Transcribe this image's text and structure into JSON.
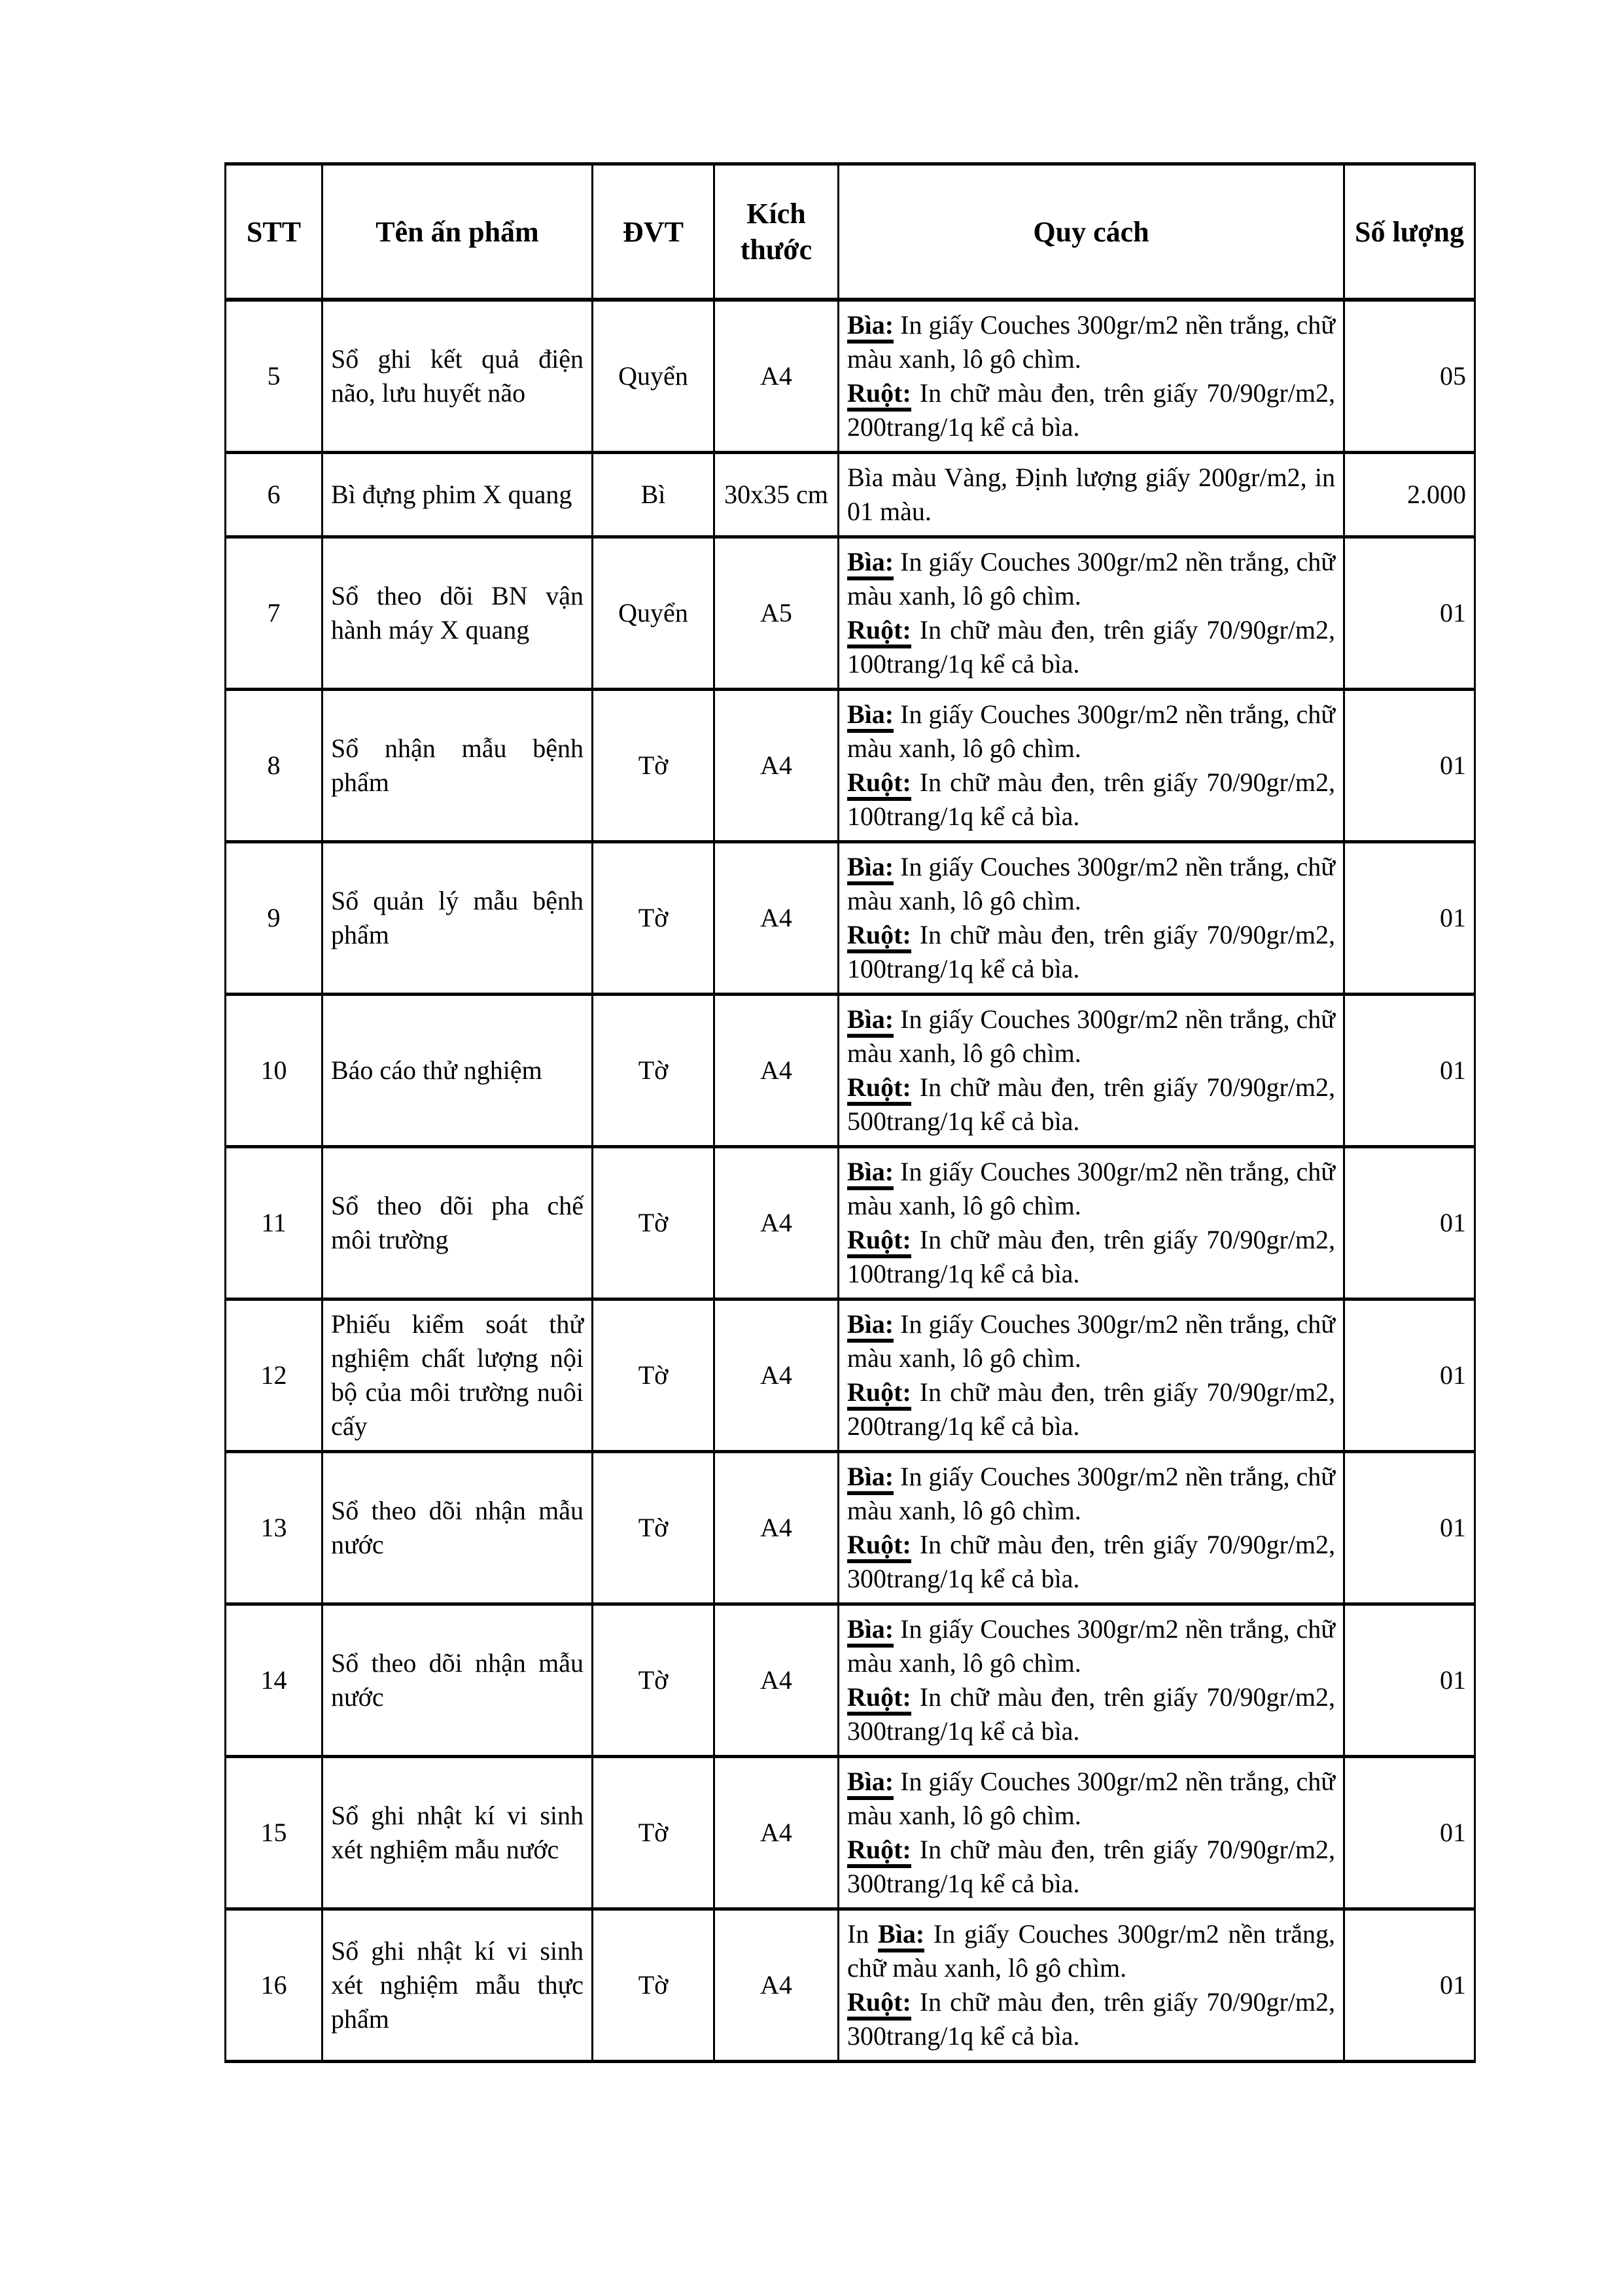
{
  "colors": {
    "ink": "#000000",
    "paper": "#ffffff"
  },
  "table": {
    "columns": [
      "STT",
      "Tên ấn phẩm",
      "ĐVT",
      "Kích thước",
      "Quy cách",
      "Số lượng"
    ],
    "rows": [
      {
        "stt": "5",
        "name": "Sổ ghi kết quả điện não, lưu huyết não",
        "unit": "Quyển",
        "size": "A4",
        "spec": [
          [
            {
              "t": "Bìa:",
              "u": true
            },
            {
              "t": " In giấy Couches 300gr/m2 nền trắng, chữ màu xanh, lô gô chìm.",
              "u": false
            }
          ],
          [
            {
              "t": "Ruột:",
              "u": true
            },
            {
              "t": " In chữ màu đen, trên giấy 70/90gr/m2, 200trang/1q kể cả bìa.",
              "u": false
            }
          ]
        ],
        "qty": "05"
      },
      {
        "stt": "6",
        "name": "Bì đựng phim X quang",
        "unit": "Bì",
        "size": "30x35 cm",
        "spec": [
          [
            {
              "t": "Bìa màu Vàng, Định lượng giấy 200gr/m2, in 01 màu.",
              "u": false
            }
          ]
        ],
        "qty": "2.000"
      },
      {
        "stt": "7",
        "name": "Sổ theo dõi BN vận hành máy X quang",
        "unit": "Quyển",
        "size": "A5",
        "spec": [
          [
            {
              "t": "Bìa:",
              "u": true
            },
            {
              "t": " In giấy Couches 300gr/m2 nền trắng, chữ màu xanh, lô gô chìm.",
              "u": false
            }
          ],
          [
            {
              "t": "Ruột:",
              "u": true
            },
            {
              "t": " In chữ màu đen, trên giấy 70/90gr/m2, 100trang/1q kể cả bìa.",
              "u": false
            }
          ]
        ],
        "qty": "01"
      },
      {
        "stt": "8",
        "name": "Sổ nhận mẫu bệnh phẩm",
        "unit": "Tờ",
        "size": "A4",
        "spec": [
          [
            {
              "t": "Bìa:",
              "u": true
            },
            {
              "t": " In giấy Couches 300gr/m2 nền trắng, chữ màu xanh, lô gô chìm.",
              "u": false
            }
          ],
          [
            {
              "t": "Ruột:",
              "u": true
            },
            {
              "t": " In chữ màu đen, trên giấy 70/90gr/m2, 100trang/1q kể cả bìa.",
              "u": false
            }
          ]
        ],
        "qty": "01"
      },
      {
        "stt": "9",
        "name": "Sổ quản lý mẫu bệnh phẩm",
        "unit": "Tờ",
        "size": "A4",
        "spec": [
          [
            {
              "t": "Bìa:",
              "u": true
            },
            {
              "t": " In giấy Couches 300gr/m2 nền trắng, chữ màu xanh, lô gô chìm.",
              "u": false
            }
          ],
          [
            {
              "t": "Ruột:",
              "u": true
            },
            {
              "t": " In chữ màu đen, trên giấy 70/90gr/m2, 100trang/1q kể cả bìa.",
              "u": false
            }
          ]
        ],
        "qty": "01"
      },
      {
        "stt": "10",
        "name": "Báo cáo thử nghiệm",
        "unit": "Tờ",
        "size": "A4",
        "spec": [
          [
            {
              "t": "Bìa:",
              "u": true
            },
            {
              "t": " In giấy Couches 300gr/m2 nền trắng, chữ màu xanh, lô gô chìm.",
              "u": false
            }
          ],
          [
            {
              "t": "Ruột:",
              "u": true
            },
            {
              "t": " In chữ màu đen, trên giấy 70/90gr/m2, 500trang/1q kể cả bìa.",
              "u": false
            }
          ]
        ],
        "qty": "01"
      },
      {
        "stt": "11",
        "name": "Sổ theo dõi pha chế môi trường",
        "unit": "Tờ",
        "size": "A4",
        "spec": [
          [
            {
              "t": "Bìa:",
              "u": true
            },
            {
              "t": " In giấy Couches 300gr/m2 nền trắng, chữ màu xanh, lô gô chìm.",
              "u": false
            }
          ],
          [
            {
              "t": "Ruột:",
              "u": true
            },
            {
              "t": " In chữ màu đen, trên giấy 70/90gr/m2, 100trang/1q kể cả bìa.",
              "u": false
            }
          ]
        ],
        "qty": "01"
      },
      {
        "stt": "12",
        "name": "Phiếu kiểm soát thử nghiệm chất lượng nội bộ của môi trường nuôi cấy",
        "unit": "Tờ",
        "size": "A4",
        "spec": [
          [
            {
              "t": "Bìa:",
              "u": true
            },
            {
              "t": " In giấy Couches 300gr/m2 nền trắng, chữ màu xanh, lô gô chìm.",
              "u": false
            }
          ],
          [
            {
              "t": "Ruột:",
              "u": true
            },
            {
              "t": " In chữ màu đen, trên giấy 70/90gr/m2, 200trang/1q kể cả bìa.",
              "u": false
            }
          ]
        ],
        "qty": "01"
      },
      {
        "stt": "13",
        "name": "Sổ theo dõi nhận mẫu nước",
        "unit": "Tờ",
        "size": "A4",
        "spec": [
          [
            {
              "t": "Bìa:",
              "u": true
            },
            {
              "t": " In giấy Couches 300gr/m2 nền trắng, chữ màu xanh, lô gô chìm.",
              "u": false
            }
          ],
          [
            {
              "t": "Ruột:",
              "u": true
            },
            {
              "t": " In chữ màu đen, trên giấy 70/90gr/m2, 300trang/1q kể cả bìa.",
              "u": false
            }
          ]
        ],
        "qty": "01"
      },
      {
        "stt": "14",
        "name": "Sổ theo dõi nhận mẫu nước",
        "unit": "Tờ",
        "size": "A4",
        "spec": [
          [
            {
              "t": "Bìa:",
              "u": true
            },
            {
              "t": " In giấy Couches 300gr/m2 nền trắng, chữ màu xanh, lô gô chìm.",
              "u": false
            }
          ],
          [
            {
              "t": "Ruột:",
              "u": true
            },
            {
              "t": " In chữ màu đen, trên giấy 70/90gr/m2, 300trang/1q kể cả bìa.",
              "u": false
            }
          ]
        ],
        "qty": "01"
      },
      {
        "stt": "15",
        "name": "Sổ ghi nhật kí vi sinh xét nghiệm mẫu nước",
        "unit": "Tờ",
        "size": "A4",
        "spec": [
          [
            {
              "t": "Bìa:",
              "u": true
            },
            {
              "t": " In giấy Couches 300gr/m2 nền trắng, chữ màu xanh, lô gô chìm.",
              "u": false
            }
          ],
          [
            {
              "t": "Ruột:",
              "u": true
            },
            {
              "t": " In chữ màu đen, trên giấy 70/90gr/m2, 300trang/1q kể cả bìa.",
              "u": false
            }
          ]
        ],
        "qty": "01"
      },
      {
        "stt": "16",
        "name": "Sổ ghi nhật kí vi sinh xét nghiệm mẫu thực phẩm",
        "unit": "Tờ",
        "size": "A4",
        "spec": [
          [
            {
              "t": "In ",
              "u": false
            },
            {
              "t": "Bìa:",
              "u": true
            },
            {
              "t": " In giấy Couches 300gr/m2 nền trắng, chữ màu xanh, lô gô chìm.",
              "u": false
            }
          ],
          [
            {
              "t": "Ruột:",
              "u": true
            },
            {
              "t": " In chữ màu đen, trên giấy 70/90gr/m2, 300trang/1q kể cả bìa.",
              "u": false
            }
          ]
        ],
        "qty": "01"
      }
    ]
  }
}
